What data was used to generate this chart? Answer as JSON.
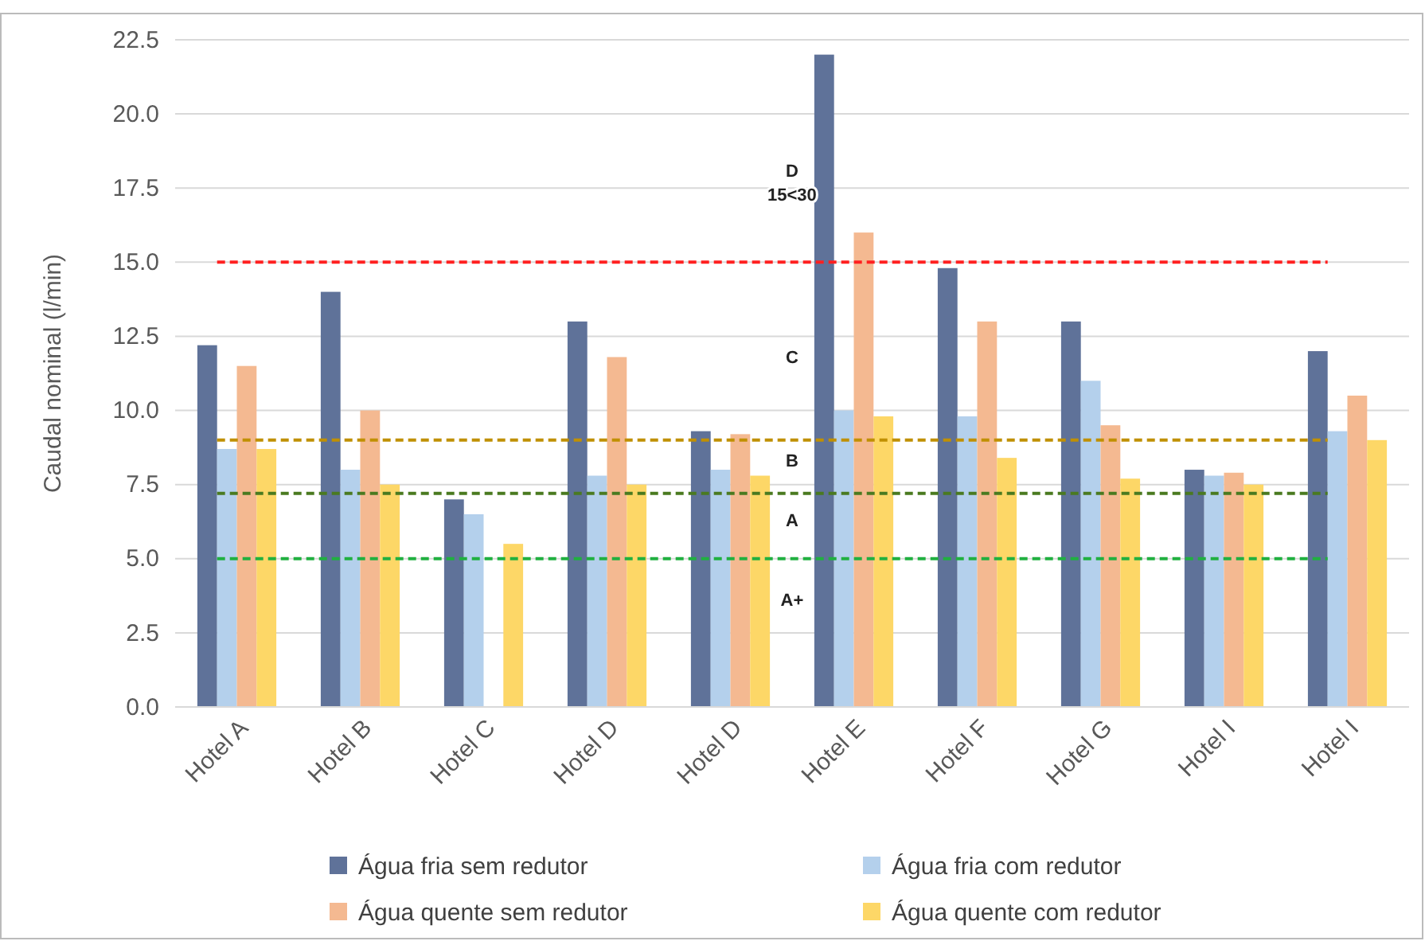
{
  "chart_data": {
    "type": "bar",
    "ylabel": "Caudal nominal (l/min)",
    "categories": [
      "Hotel A",
      "Hotel B",
      "Hotel C",
      "Hotel D",
      "Hotel D",
      "Hotel E",
      "Hotel F",
      "Hotel G",
      "Hotel I",
      "Hotel I"
    ],
    "series": [
      {
        "name": "Água fria sem redutor",
        "color": "#5f7299",
        "values": [
          12.2,
          14,
          7,
          13,
          9.3,
          22,
          14.8,
          13,
          8,
          12
        ]
      },
      {
        "name": "Água fria com redutor",
        "color": "#b4d0ec",
        "values": [
          8.7,
          8,
          6.5,
          7.8,
          8,
          10,
          9.8,
          11,
          7.8,
          9.3
        ]
      },
      {
        "name": "Água quente sem redutor",
        "color": "#f4b991",
        "values": [
          11.5,
          10,
          null,
          11.8,
          9.2,
          16,
          13,
          9.5,
          7.9,
          10.5
        ]
      },
      {
        "name": "Água quente com redutor",
        "color": "#fdd767",
        "values": [
          8.7,
          7.5,
          5.5,
          7.5,
          7.8,
          9.8,
          8.4,
          7.7,
          7.5,
          9
        ]
      }
    ],
    "ylim": [
      0,
      22.5
    ],
    "yticks": [
      {
        "value": 0,
        "label": "0.0"
      },
      {
        "value": 2.5,
        "label": "2.5"
      },
      {
        "value": 5,
        "label": "5.0"
      },
      {
        "value": 7.5,
        "label": "7.5"
      },
      {
        "value": 10,
        "label": "10.0"
      },
      {
        "value": 12.5,
        "label": "12.5"
      },
      {
        "value": 15,
        "label": "15.0"
      },
      {
        "value": 17.5,
        "label": "17.5"
      },
      {
        "value": 20,
        "label": "20.0"
      },
      {
        "value": 22.5,
        "label": "22.5"
      }
    ],
    "grid": "y",
    "legend": "bottom",
    "ref_lines": [
      {
        "axis": "y",
        "value": 15,
        "color": "#ff2020",
        "line_style": "dashed"
      },
      {
        "axis": "y",
        "value": 9,
        "color": "#c09000",
        "line_style": "dashed"
      },
      {
        "axis": "y",
        "value": 7.2,
        "color": "#4a7a20",
        "line_style": "dashed"
      },
      {
        "axis": "y",
        "value": 5,
        "color": "#20b040",
        "line_style": "dashed"
      }
    ],
    "annotations": [
      {
        "text": "D\n15<30",
        "x": "Hotel E",
        "y": 17.5
      },
      {
        "text": "C",
        "x": "Hotel E",
        "y": 11.6
      },
      {
        "text": "B",
        "x": "Hotel E",
        "y": 8.1
      },
      {
        "text": "A",
        "x": "Hotel E",
        "y": 6.1
      },
      {
        "text": "A+",
        "x": "Hotel E",
        "y": 3.4
      }
    ]
  }
}
